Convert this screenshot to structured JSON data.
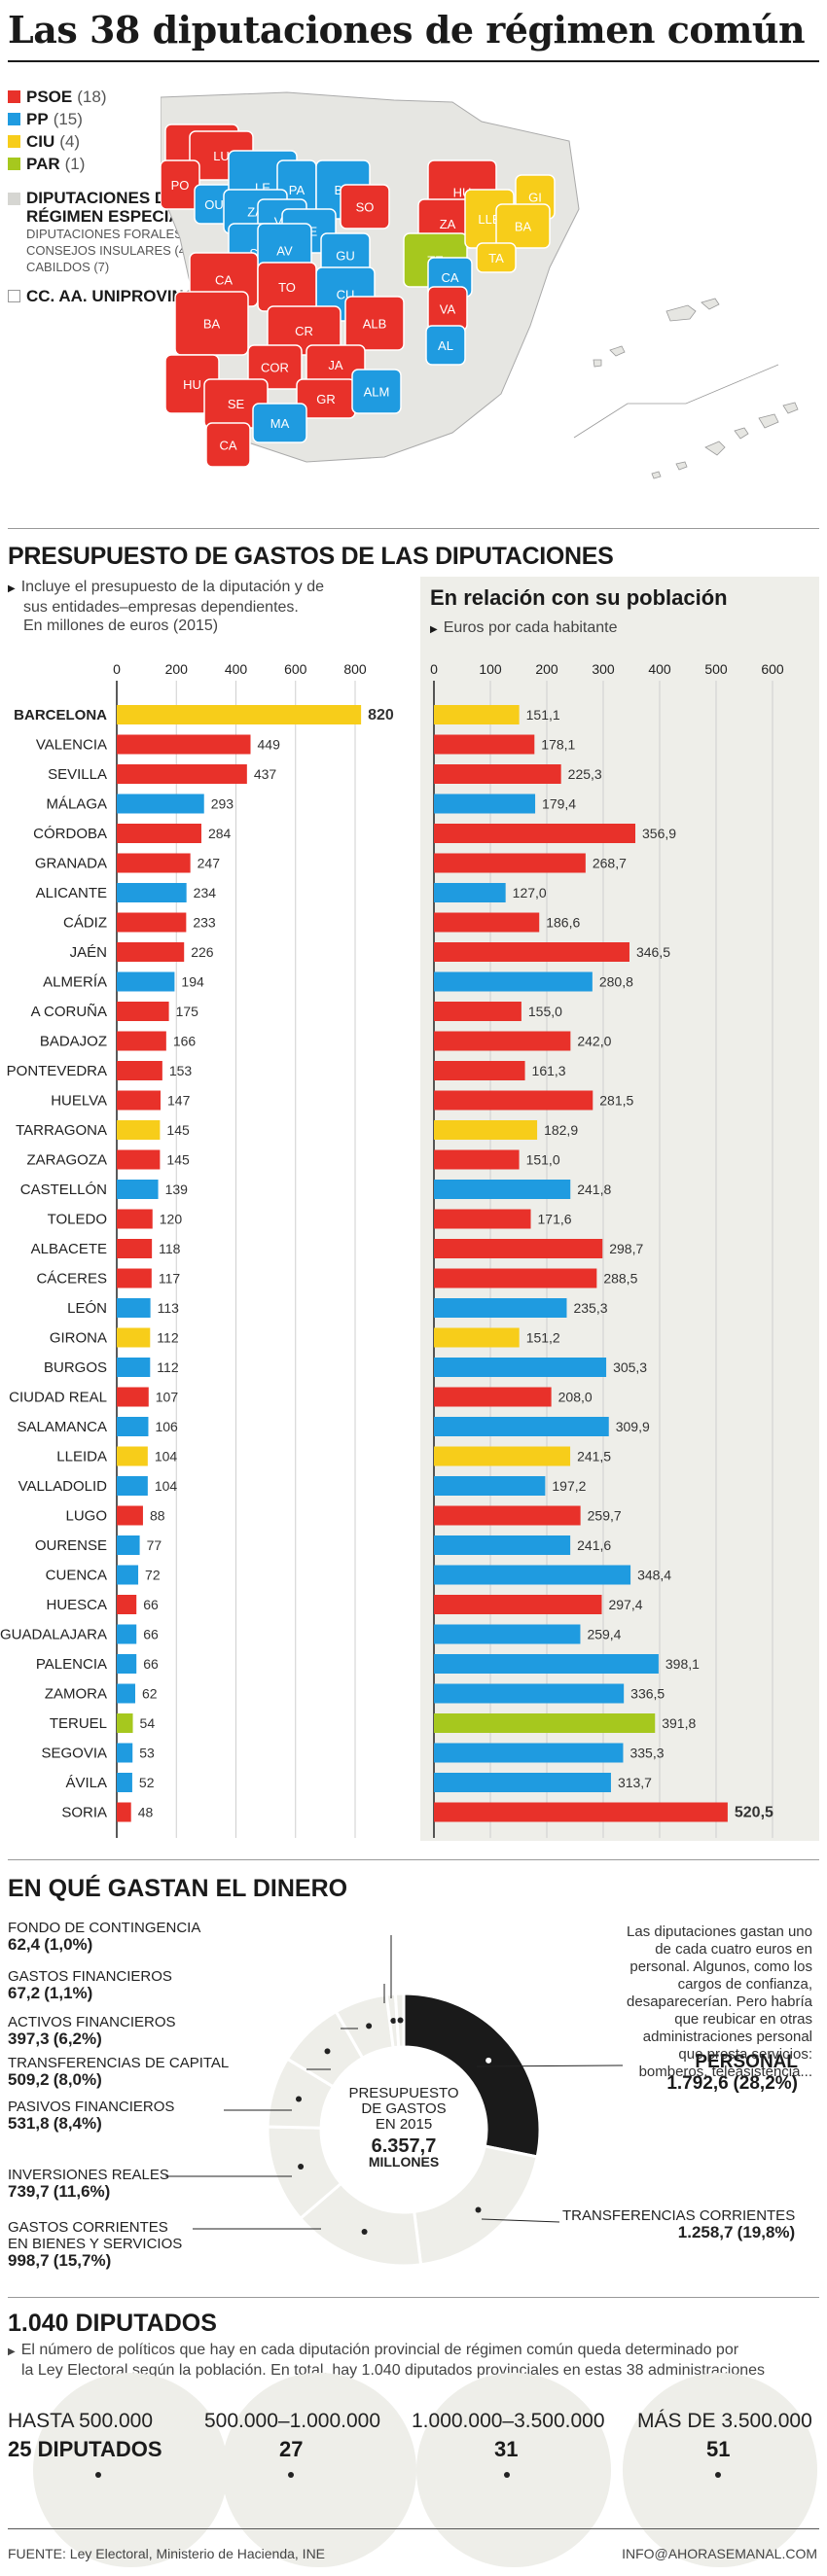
{
  "page": {
    "title": "Las 38 diputaciones de régimen común",
    "colors": {
      "PSOE": "#e8312a",
      "PP": "#1f9be0",
      "CIU": "#f7cd1a",
      "PAR": "#a6c81e",
      "special": "#d6d6d2",
      "uni": "#ffffff"
    }
  },
  "legend": {
    "items": [
      {
        "label": "PSOE",
        "count": "(18)",
        "color": "#e8312a"
      },
      {
        "label": "PP",
        "count": "(15)",
        "color": "#1f9be0"
      },
      {
        "label": "CIU",
        "count": "(4)",
        "color": "#f7cd1a"
      },
      {
        "label": "PAR",
        "count": "(1)",
        "color": "#a6c81e"
      }
    ],
    "special_title_1": "DIPUTACIONES DE",
    "special_title_2": "RÉGIMEN ESPECIAL",
    "special_sub_1": "DIPUTACIONES FORALES (3)",
    "special_sub_2": "CONSEJOS INSULARES (4)",
    "special_sub_3": "CABILDOS (7)",
    "uni_label": "CC. AA. UNIPROVINCIALES"
  },
  "map": {
    "provinces": [
      {
        "code": "CO",
        "party": "PSOE"
      },
      {
        "code": "LU",
        "party": "PSOE"
      },
      {
        "code": "PO",
        "party": "PSOE"
      },
      {
        "code": "OU",
        "party": "PP"
      },
      {
        "code": "LE",
        "party": "PP"
      },
      {
        "code": "PA",
        "party": "PP"
      },
      {
        "code": "BU",
        "party": "PP"
      },
      {
        "code": "ZA",
        "party": "PP"
      },
      {
        "code": "VA",
        "party": "PP"
      },
      {
        "code": "SE",
        "party": "PP"
      },
      {
        "code": "SA",
        "party": "PP"
      },
      {
        "code": "AV",
        "party": "PP"
      },
      {
        "code": "SO",
        "party": "PSOE"
      },
      {
        "code": "GU",
        "party": "PP"
      },
      {
        "code": "CU",
        "party": "PP"
      },
      {
        "code": "HU",
        "party": "PSOE"
      },
      {
        "code": "ZA",
        "party": "PSOE"
      },
      {
        "code": "TE",
        "party": "PAR"
      },
      {
        "code": "LLE",
        "party": "CIU"
      },
      {
        "code": "GI",
        "party": "CIU"
      },
      {
        "code": "BA",
        "party": "CIU"
      },
      {
        "code": "TA",
        "party": "CIU"
      },
      {
        "code": "CA",
        "party": "PP"
      },
      {
        "code": "VA",
        "party": "PSOE"
      },
      {
        "code": "AL",
        "party": "PP"
      },
      {
        "code": "CA",
        "party": "PSOE"
      },
      {
        "code": "TO",
        "party": "PSOE"
      },
      {
        "code": "BA",
        "party": "PSOE"
      },
      {
        "code": "CR",
        "party": "PSOE"
      },
      {
        "code": "ALB",
        "party": "PSOE"
      },
      {
        "code": "COR",
        "party": "PSOE"
      },
      {
        "code": "JA",
        "party": "PSOE"
      },
      {
        "code": "HU",
        "party": "PSOE"
      },
      {
        "code": "SE",
        "party": "PSOE"
      },
      {
        "code": "GR",
        "party": "PSOE"
      },
      {
        "code": "ALM",
        "party": "PP"
      },
      {
        "code": "MA",
        "party": "PP"
      },
      {
        "code": "CA",
        "party": "PSOE"
      }
    ]
  },
  "section2": {
    "heading": "PRESUPUESTO DE GASTOS DE LAS DIPUTACIONES",
    "note_1": "Incluye el presupuesto de la diputación y de",
    "note_2": "sus entidades–empresas dependientes.",
    "note_3": "En millones de euros (2015)",
    "right_title": "En relación con su población",
    "right_note": "Euros por cada habitante"
  },
  "chart_data": [
    {
      "type": "bar",
      "orientation": "horizontal",
      "title": "PRESUPUESTO DE GASTOS DE LAS DIPUTACIONES",
      "unit": "En millones de euros (2015)",
      "xlim": [
        0,
        900
      ],
      "xticks": [
        0,
        200,
        400,
        600,
        800
      ],
      "categories": [
        "BARCELONA",
        "VALENCIA",
        "SEVILLA",
        "MÁLAGA",
        "CÓRDOBA",
        "GRANADA",
        "ALICANTE",
        "CÁDIZ",
        "JAÉN",
        "ALMERÍA",
        "A CORUÑA",
        "BADAJOZ",
        "PONTEVEDRA",
        "HUELVA",
        "TARRAGONA",
        "ZARAGOZA",
        "CASTELLÓN",
        "TOLEDO",
        "ALBACETE",
        "CÁCERES",
        "LEÓN",
        "GIRONA",
        "BURGOS",
        "CIUDAD REAL",
        "SALAMANCA",
        "LLEIDA",
        "VALLADOLID",
        "LUGO",
        "OURENSE",
        "CUENCA",
        "HUESCA",
        "GUADALAJARA",
        "PALENCIA",
        "ZAMORA",
        "TERUEL",
        "SEGOVIA",
        "ÁVILA",
        "SORIA"
      ],
      "values": [
        820,
        449,
        437,
        293,
        284,
        247,
        234,
        233,
        226,
        194,
        175,
        166,
        153,
        147,
        145,
        145,
        139,
        120,
        118,
        117,
        113,
        112,
        112,
        107,
        106,
        104,
        104,
        88,
        77,
        72,
        66,
        66,
        66,
        62,
        54,
        53,
        52,
        48
      ],
      "labels": [
        "820",
        "449",
        "437",
        "293",
        "284",
        "247",
        "234",
        "233",
        "226",
        "194",
        "175",
        "166",
        "153",
        "147",
        "145",
        "145",
        "139",
        "120",
        "118",
        "117",
        "113",
        "112",
        "112",
        "107",
        "106",
        "104",
        "104",
        "88",
        "77",
        "72",
        "66",
        "66",
        "66",
        "62",
        "54",
        "53",
        "52",
        "48"
      ],
      "parties": [
        "CIU",
        "PSOE",
        "PSOE",
        "PP",
        "PSOE",
        "PSOE",
        "PP",
        "PSOE",
        "PSOE",
        "PP",
        "PSOE",
        "PSOE",
        "PSOE",
        "PSOE",
        "CIU",
        "PSOE",
        "PP",
        "PSOE",
        "PSOE",
        "PSOE",
        "PP",
        "CIU",
        "PP",
        "PSOE",
        "PP",
        "CIU",
        "PP",
        "PSOE",
        "PP",
        "PP",
        "PSOE",
        "PP",
        "PP",
        "PP",
        "PAR",
        "PP",
        "PP",
        "PSOE"
      ]
    },
    {
      "type": "bar",
      "orientation": "horizontal",
      "title": "En relación con su población",
      "unit": "Euros por cada habitante",
      "xlim": [
        0,
        600
      ],
      "xticks": [
        0,
        100,
        200,
        300,
        400,
        500,
        600
      ],
      "categories": [
        "BARCELONA",
        "VALENCIA",
        "SEVILLA",
        "MÁLAGA",
        "CÓRDOBA",
        "GRANADA",
        "ALICANTE",
        "CÁDIZ",
        "JAÉN",
        "ALMERÍA",
        "A CORUÑA",
        "BADAJOZ",
        "PONTEVEDRA",
        "HUELVA",
        "TARRAGONA",
        "ZARAGOZA",
        "CASTELLÓN",
        "TOLEDO",
        "ALBACETE",
        "CÁCERES",
        "LEÓN",
        "GIRONA",
        "BURGOS",
        "CIUDAD REAL",
        "SALAMANCA",
        "LLEIDA",
        "VALLADOLID",
        "LUGO",
        "OURENSE",
        "CUENCA",
        "HUESCA",
        "GUADALAJARA",
        "PALENCIA",
        "ZAMORA",
        "TERUEL",
        "SEGOVIA",
        "ÁVILA",
        "SORIA"
      ],
      "values": [
        151.1,
        178.1,
        225.3,
        179.4,
        356.9,
        268.7,
        127.0,
        186.6,
        346.5,
        280.8,
        155.0,
        242.0,
        161.3,
        281.5,
        182.9,
        151.0,
        241.8,
        171.6,
        298.7,
        288.5,
        235.3,
        151.2,
        305.3,
        208.0,
        309.9,
        241.5,
        197.2,
        259.7,
        241.6,
        348.4,
        297.4,
        259.4,
        398.1,
        336.5,
        391.8,
        335.3,
        313.7,
        520.5
      ],
      "labels": [
        "151,1",
        "178,1",
        "225,3",
        "179,4",
        "356,9",
        "268,7",
        "127,0",
        "186,6",
        "346,5",
        "280,8",
        "155,0",
        "242,0",
        "161,3",
        "281,5",
        "182,9",
        "151,0",
        "241,8",
        "171,6",
        "298,7",
        "288,5",
        "235,3",
        "151,2",
        "305,3",
        "208,0",
        "309,9",
        "241,5",
        "197,2",
        "259,7",
        "241,6",
        "348,4",
        "297,4",
        "259,4",
        "398,1",
        "336,5",
        "391,8",
        "335,3",
        "313,7",
        "520,5"
      ]
    },
    {
      "type": "pie",
      "title": "EN QUÉ GASTAN EL DINERO",
      "total_label": "6.357,7",
      "slices": [
        {
          "name": "PERSONAL",
          "value": 1792.6,
          "value_label": "1.792,6",
          "pct": "(28,2%)"
        },
        {
          "name": "TRANSFERENCIAS CORRIENTES",
          "value": 1258.7,
          "value_label": "1.258,7",
          "pct": "(19,8%)"
        },
        {
          "name": "GASTOS CORRIENTES EN BIENES Y SERVICIOS",
          "value": 998.7,
          "value_label": "998,7",
          "pct": "(15,7%)"
        },
        {
          "name": "INVERSIONES REALES",
          "value": 739.7,
          "value_label": "739,7",
          "pct": "(11,6%)"
        },
        {
          "name": "PASIVOS FINANCIEROS",
          "value": 531.8,
          "value_label": "531,8",
          "pct": "(8,4%)"
        },
        {
          "name": "TRANSFERENCIAS DE CAPITAL",
          "value": 509.2,
          "value_label": "509,2",
          "pct": "(8,0%)"
        },
        {
          "name": "ACTIVOS FINANCIEROS",
          "value": 397.3,
          "value_label": "397,3",
          "pct": "(6,2%)"
        },
        {
          "name": "GASTOS FINANCIEROS",
          "value": 67.2,
          "value_label": "67,2",
          "pct": "(1,1%)"
        },
        {
          "name": "FONDO DE CONTINGENCIA",
          "value": 62.4,
          "value_label": "62,4",
          "pct": "(1,0%)"
        }
      ]
    }
  ],
  "section3": {
    "heading": "EN QUÉ GASTAN EL DINERO",
    "fondo_1": "FONDO DE CONTINGENCIA",
    "fondo_v": "62,4",
    "fondo_p": "(1,0%)",
    "gfin_1": "GASTOS FINANCIEROS",
    "gfin_v": "67,2",
    "gfin_p": "(1,1%)",
    "afin_1": "ACTIVOS FINANCIEROS",
    "afin_v": "397,3",
    "afin_p": "(6,2%)",
    "tcap_1": "TRANSFERENCIAS DE CAPITAL",
    "tcap_v": "509,2",
    "tcap_p": "(8,0%)",
    "pfin_1": "PASIVOS FINANCIEROS",
    "pfin_v": "531,8",
    "pfin_p": "(8,4%)",
    "inv_1": "INVERSIONES REALES",
    "inv_v": "739,7",
    "inv_p": "(11,6%)",
    "gc_1": "GASTOS CORRIENTES",
    "gc_2": "EN BIENES Y SERVICIOS",
    "gc_v": "998,7",
    "gc_p": "(15,7%)",
    "tc_1": "TRANSFERENCIAS CORRIENTES",
    "tc_v": "1.258,7",
    "tc_p": "(19,8%)",
    "pers_1": "PERSONAL",
    "pers_v": "1.792,6",
    "pers_p": "(28,2%)",
    "center_1": "PRESUPUESTO",
    "center_2": "DE GASTOS",
    "center_3": "EN 2015",
    "center_total": "6.357,7",
    "center_unit": "MILLONES",
    "para": "Las diputaciones gastan uno de cada cuatro euros en personal. Algunos, como los cargos de confianza, desaparecerían. Pero habría que reubicar en otras administraciones personal que presta servicios: bomberos, teleasistencia..."
  },
  "section4": {
    "heading": "1.040 DIPUTADOS",
    "note_1": "El número de políticos que hay en cada diputación provincial de régimen común queda determinado por",
    "note_2": "la Ley Electoral según la población. En total, hay 1.040 diputados provinciales en estas 38 administraciones",
    "groups": [
      {
        "range": "HASTA 500.000",
        "value": "25 DIPUTADOS"
      },
      {
        "range": "500.000–1.000.000",
        "value": "27"
      },
      {
        "range": "1.000.000–3.500.000",
        "value": "31"
      },
      {
        "range": "MÁS DE 3.500.000",
        "value": "51"
      }
    ],
    "source": "FUENTE: Ley Electoral, Ministerio de Hacienda, INE",
    "email": "INFO@AHORASEMANAL.COM"
  }
}
